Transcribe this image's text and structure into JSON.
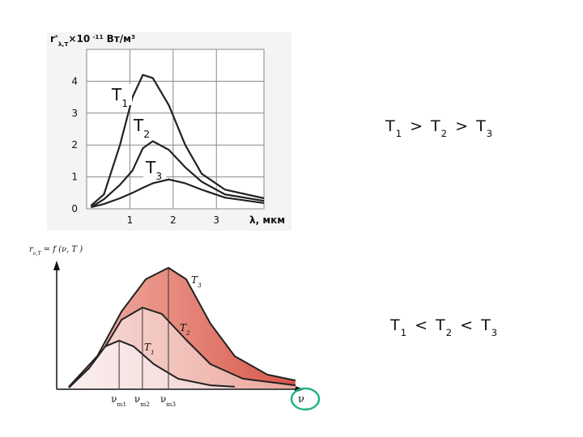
{
  "chart_data": [
    {
      "type": "line",
      "ylabel": {
        "symbol": "r",
        "sup": "*",
        "sub": "λ,T",
        "factor": "×10",
        "exp": "-11",
        "unit": "Вт/м",
        "unit_exp": "3"
      },
      "xlabel": "λ, мкм",
      "xlim": [
        0,
        4.1
      ],
      "ylim": [
        0,
        5
      ],
      "xticks": [
        1,
        2,
        3
      ],
      "yticks": [
        0,
        1,
        2,
        3,
        4
      ],
      "grid": true,
      "x": [
        0.1,
        0.4,
        0.77,
        1.06,
        1.3,
        1.53,
        1.9,
        2.28,
        2.66,
        3.2,
        4.1
      ],
      "series": [
        {
          "name": "T",
          "subscript": "1",
          "color": "#222222",
          "values": [
            0.1,
            0.45,
            2.0,
            3.5,
            4.2,
            4.1,
            3.25,
            2.0,
            1.1,
            0.6,
            0.33
          ]
        },
        {
          "name": "T",
          "subscript": "2",
          "color": "#222222",
          "values": [
            0.05,
            0.3,
            0.75,
            1.2,
            1.9,
            2.12,
            1.85,
            1.3,
            0.85,
            0.45,
            0.25
          ]
        },
        {
          "name": "T",
          "subscript": "3",
          "color": "#222222",
          "values": [
            0.05,
            0.15,
            0.33,
            0.5,
            0.66,
            0.8,
            0.92,
            0.8,
            0.6,
            0.35,
            0.18
          ]
        }
      ]
    },
    {
      "type": "area",
      "ylabel": {
        "symbol": "r",
        "sub": "ν,T",
        "rest": "= f (ν, T )"
      },
      "xlabel": "ν",
      "xlim": [
        0,
        10
      ],
      "ylim": [
        0,
        5.2
      ],
      "series": [
        {
          "name": "T",
          "subscript": "1",
          "color": "#f6dede",
          "x": [
            0.5,
            1.33,
            2.0,
            2.57,
            3.17,
            4.0,
            5.0,
            6.33,
            7.33
          ],
          "values": [
            0.03,
            0.83,
            1.73,
            1.97,
            1.73,
            1.0,
            0.4,
            0.13,
            0.07
          ]
        },
        {
          "name": "T",
          "subscript": "2",
          "color": "#efb7ad",
          "x": [
            0.5,
            1.67,
            2.67,
            3.53,
            4.33,
            5.33,
            6.33,
            7.67,
            9.83
          ],
          "values": [
            0.03,
            1.17,
            2.83,
            3.33,
            3.07,
            2.0,
            1.0,
            0.4,
            0.13
          ]
        },
        {
          "name": "T",
          "subscript": "3",
          "color": "#df6d5c",
          "x": [
            0.5,
            1.67,
            2.67,
            3.67,
            4.6,
            5.33,
            6.33,
            7.33,
            8.67,
            9.83
          ],
          "values": [
            0.07,
            1.33,
            3.17,
            4.5,
            4.97,
            4.5,
            2.67,
            1.33,
            0.57,
            0.33
          ]
        }
      ],
      "peaks": [
        {
          "x": 2.57,
          "label": "ν",
          "sub": "m1"
        },
        {
          "x": 3.53,
          "label": "ν",
          "sub": "m2"
        },
        {
          "x": 4.6,
          "label": "ν",
          "sub": "m3"
        }
      ]
    }
  ],
  "annotations": [
    {
      "terms": [
        {
          "text": "T",
          "sub": "1"
        },
        {
          "text": "T",
          "sub": "2"
        },
        {
          "text": "T",
          "sub": "3"
        }
      ],
      "relation": ">"
    },
    {
      "terms": [
        {
          "text": "T",
          "sub": "1"
        },
        {
          "text": "T",
          "sub": "2"
        },
        {
          "text": "T",
          "sub": "3"
        }
      ],
      "relation": "<"
    }
  ]
}
